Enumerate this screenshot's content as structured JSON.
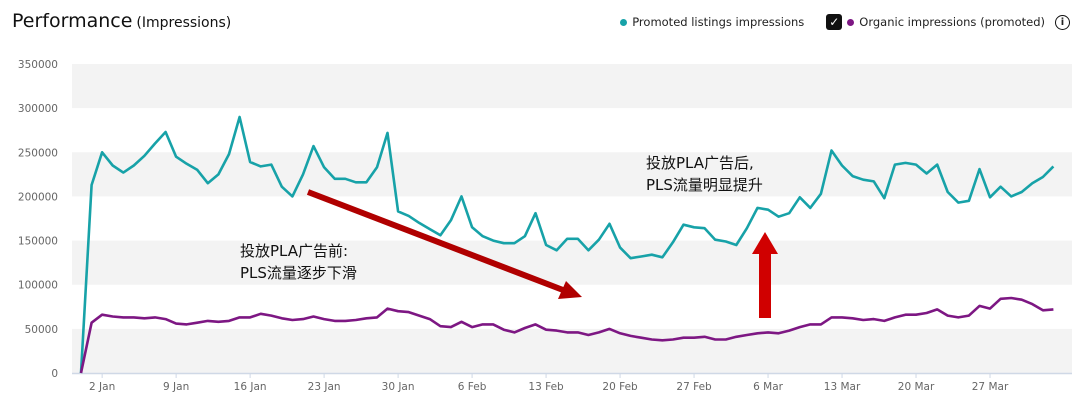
{
  "title": "Performance",
  "subtitle": "(Impressions)",
  "legend": [
    {
      "label": "Promoted listings impressions",
      "color": "#17a2a8"
    },
    {
      "label": "Organic impressions (promoted)",
      "color": "#7d1783",
      "checked": true
    }
  ],
  "annotations": {
    "before_line1": "投放PLA广告前:",
    "before_line2": "PLS流量逐步下滑",
    "after_line1": "投放PLA广告后,",
    "after_line2": "PLS流量明显提升",
    "arrow_color": "#d00000"
  },
  "chart_data": {
    "type": "line",
    "title": "Performance (Impressions)",
    "xlabel": "",
    "ylabel": "",
    "ylim": [
      0,
      350000
    ],
    "yticks": [
      0,
      50000,
      100000,
      150000,
      200000,
      250000,
      300000,
      350000
    ],
    "xticks": [
      {
        "label": "2 Jan",
        "index": 2
      },
      {
        "label": "9 Jan",
        "index": 9
      },
      {
        "label": "16 Jan",
        "index": 16
      },
      {
        "label": "23 Jan",
        "index": 23
      },
      {
        "label": "30 Jan",
        "index": 30
      },
      {
        "label": "6 Feb",
        "index": 37
      },
      {
        "label": "13 Feb",
        "index": 44
      },
      {
        "label": "20 Feb",
        "index": 51
      },
      {
        "label": "27 Feb",
        "index": 58
      },
      {
        "label": "6 Mar",
        "index": 65
      },
      {
        "label": "13 Mar",
        "index": 72
      },
      {
        "label": "20 Mar",
        "index": 79
      },
      {
        "label": "27 Mar",
        "index": 86
      }
    ],
    "x_start": "31 Dec",
    "x_step": "1 day",
    "series": [
      {
        "name": "Promoted listings impressions",
        "color": "#17a2a8",
        "values": [
          0,
          213000,
          250000,
          235000,
          227000,
          235000,
          246000,
          260000,
          273000,
          245000,
          237000,
          230000,
          215000,
          225000,
          248000,
          290000,
          239000,
          234000,
          236000,
          211000,
          200000,
          225000,
          257000,
          233000,
          220000,
          220000,
          216000,
          216000,
          233000,
          272000,
          183000,
          178000,
          170000,
          163000,
          156000,
          173000,
          200000,
          165000,
          155000,
          150000,
          147000,
          147000,
          155000,
          181000,
          145000,
          139000,
          152000,
          152000,
          139000,
          151000,
          169000,
          142000,
          130000,
          132000,
          134000,
          131000,
          148000,
          168000,
          165000,
          164000,
          151000,
          149000,
          145000,
          164000,
          187000,
          185000,
          177000,
          181000,
          199000,
          187000,
          203000,
          252000,
          235000,
          223000,
          219000,
          217000,
          198000,
          236000,
          238000,
          236000,
          226000,
          236000,
          205000,
          193000,
          195000,
          231000,
          199000,
          211000,
          200000,
          205000,
          215000,
          222000,
          234000
        ]
      },
      {
        "name": "Organic impressions (promoted)",
        "color": "#7d1783",
        "values": [
          0,
          57000,
          66000,
          64000,
          63000,
          63000,
          62000,
          63000,
          61000,
          56000,
          55000,
          57000,
          59000,
          58000,
          59000,
          63000,
          63000,
          67000,
          65000,
          62000,
          60000,
          61000,
          64000,
          61000,
          59000,
          59000,
          60000,
          62000,
          63000,
          73000,
          70000,
          69000,
          65000,
          61000,
          53000,
          52000,
          58000,
          52000,
          55000,
          55000,
          49000,
          46000,
          51000,
          55000,
          49000,
          48000,
          46000,
          46000,
          43000,
          46000,
          50000,
          45000,
          42000,
          40000,
          38000,
          37000,
          38000,
          40000,
          40000,
          41000,
          38000,
          38000,
          41000,
          43000,
          45000,
          46000,
          45000,
          48000,
          52000,
          55000,
          55000,
          63000,
          63000,
          62000,
          60000,
          61000,
          59000,
          63000,
          66000,
          66000,
          68000,
          72000,
          65000,
          63000,
          65000,
          76000,
          73000,
          84000,
          85000,
          83000,
          78000,
          71000,
          72000
        ]
      }
    ]
  }
}
